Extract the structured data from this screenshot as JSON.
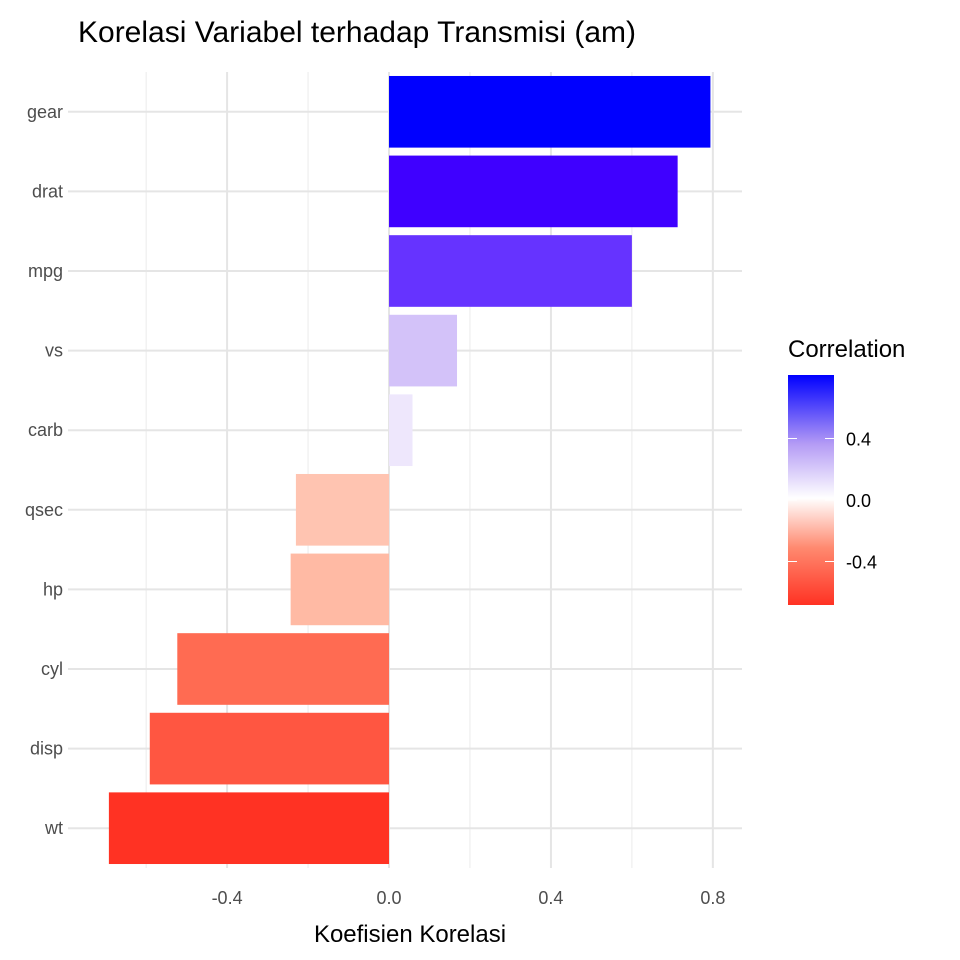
{
  "chart_data": {
    "type": "bar",
    "orientation": "horizontal",
    "title": "Korelasi Variabel terhadap Transmisi (am)",
    "xlabel": "Koefisien Korelasi",
    "ylabel": "",
    "xlim": [
      -0.793,
      0.872
    ],
    "xticks": [
      -0.4,
      0.0,
      0.4,
      0.8
    ],
    "xtick_labels": [
      "-0.4",
      "0.0",
      "0.4",
      "0.8"
    ],
    "minor_grid": [
      -0.6,
      -0.2,
      0.2,
      0.6
    ],
    "grid": true,
    "categories": [
      "gear",
      "drat",
      "mpg",
      "vs",
      "carb",
      "qsec",
      "hp",
      "cyl",
      "disp",
      "wt"
    ],
    "values": [
      0.794,
      0.713,
      0.6,
      0.168,
      0.058,
      -0.23,
      -0.243,
      -0.523,
      -0.591,
      -0.692
    ],
    "colors": [
      "#0000FF",
      "#3F00FF",
      "#6633FF",
      "#D3C2F9",
      "#EEE7FC",
      "#FFC4B1",
      "#FFBAA4",
      "#FF6B52",
      "#FF5641",
      "#FF3223"
    ],
    "legend": {
      "title": "Correlation",
      "position": "right",
      "range": [
        -0.692,
        0.794
      ],
      "ticks": [
        0.4,
        0.0,
        -0.4
      ],
      "tick_labels": [
        "0.4",
        "0.0",
        "-0.4"
      ],
      "low_color": "#FF3223",
      "mid_color": "#FFFFFF",
      "high_color": "#0000FF"
    }
  }
}
